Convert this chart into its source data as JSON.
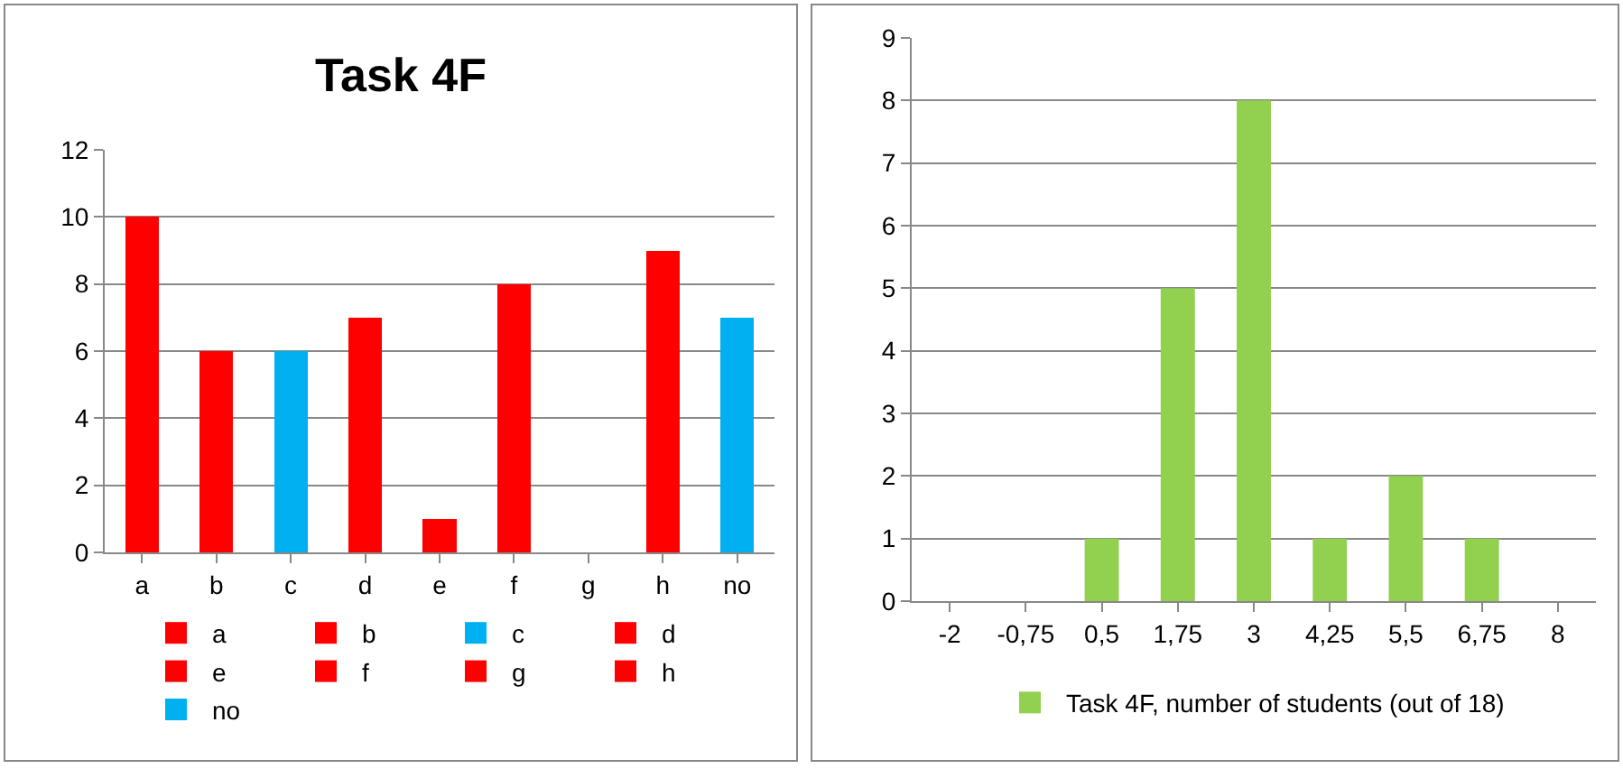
{
  "chart_data": [
    {
      "type": "bar",
      "title": "Task 4F",
      "categories": [
        "a",
        "b",
        "c",
        "d",
        "e",
        "f",
        "g",
        "h",
        "no"
      ],
      "stacked": true,
      "series": [
        {
          "name": "a",
          "color": "#ff0000",
          "values": [
            10,
            null,
            null,
            null,
            null,
            null,
            null,
            null,
            null
          ]
        },
        {
          "name": "b",
          "color": "#ff0000",
          "values": [
            null,
            6,
            null,
            null,
            null,
            null,
            null,
            null,
            null
          ]
        },
        {
          "name": "c",
          "color": "#00b0f0",
          "values": [
            null,
            null,
            6,
            null,
            null,
            null,
            null,
            null,
            null
          ]
        },
        {
          "name": "d",
          "color": "#ff0000",
          "values": [
            null,
            null,
            null,
            7,
            null,
            null,
            null,
            null,
            null
          ]
        },
        {
          "name": "e",
          "color": "#ff0000",
          "values": [
            null,
            null,
            null,
            null,
            1,
            null,
            null,
            null,
            null
          ]
        },
        {
          "name": "f",
          "color": "#ff0000",
          "values": [
            null,
            null,
            null,
            null,
            null,
            8,
            null,
            null,
            null
          ]
        },
        {
          "name": "g",
          "color": "#ff0000",
          "values": [
            null,
            null,
            null,
            null,
            null,
            null,
            0,
            null,
            null
          ]
        },
        {
          "name": "h",
          "color": "#ff0000",
          "values": [
            null,
            null,
            null,
            null,
            null,
            null,
            null,
            9,
            null
          ]
        },
        {
          "name": "no",
          "color": "#00b0f0",
          "values": [
            null,
            null,
            null,
            null,
            null,
            null,
            null,
            null,
            7
          ]
        }
      ],
      "ylim": [
        0,
        12
      ],
      "yticks": [
        0,
        2,
        4,
        6,
        8,
        10,
        12
      ],
      "grid": "y",
      "legend": "bottom"
    },
    {
      "type": "bar",
      "categories": [
        "-2",
        "-0,75",
        "0,5",
        "1,75",
        "3",
        "4,25",
        "5,5",
        "6,75",
        "8"
      ],
      "series": [
        {
          "name": "Task 4F, number of students (out of 18)",
          "color": "#92d050",
          "values": [
            0,
            0,
            1,
            5,
            8,
            1,
            2,
            1,
            0
          ]
        }
      ],
      "ylim": [
        0,
        9
      ],
      "yticks": [
        0,
        1,
        2,
        3,
        4,
        5,
        6,
        7,
        8,
        9
      ],
      "grid": "y",
      "legend": "bottom"
    }
  ]
}
